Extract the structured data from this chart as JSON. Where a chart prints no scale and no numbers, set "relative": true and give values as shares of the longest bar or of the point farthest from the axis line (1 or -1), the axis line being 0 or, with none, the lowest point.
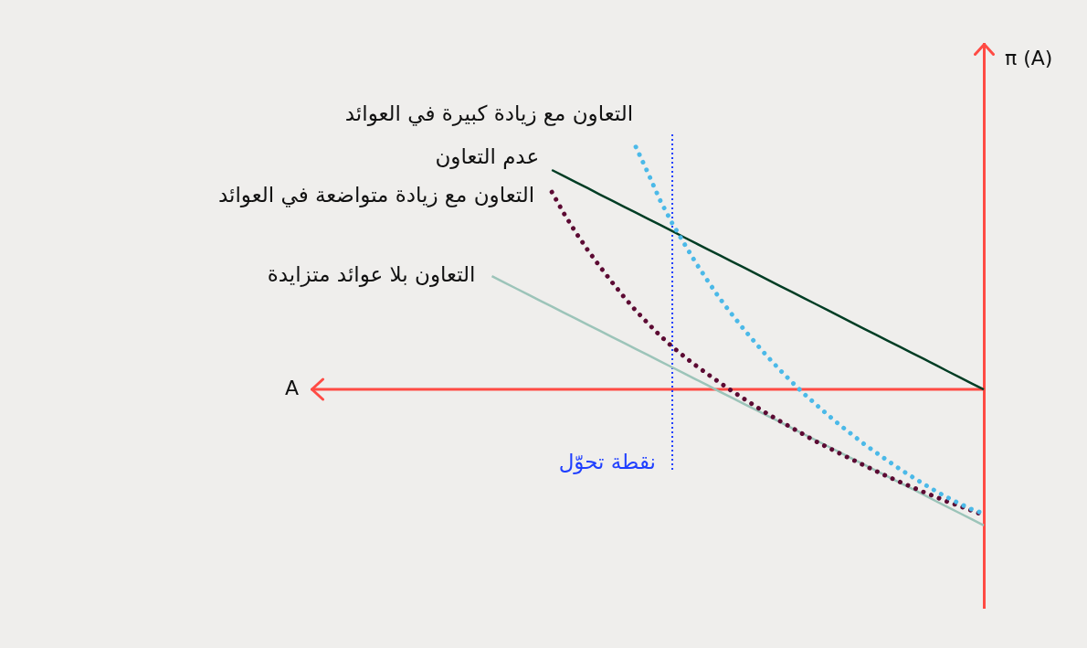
{
  "chart_data": {
    "type": "line",
    "relative": true,
    "xlabel": "A",
    "ylabel": "π (A)",
    "annotations": [
      "نقطة تحوّل"
    ],
    "ref_lines": [
      {
        "axis": "y",
        "value": 0,
        "color": "#ff4b44"
      }
    ],
    "categories": [
      null,
      null,
      null,
      null,
      null,
      null,
      null,
      null,
      null,
      null,
      null,
      null,
      null,
      null,
      null,
      null,
      null,
      null,
      null,
      null,
      null,
      null,
      null,
      null,
      null,
      null,
      null,
      null,
      null,
      null,
      null,
      null,
      null,
      null,
      null,
      null,
      null,
      null,
      null,
      null,
      null,
      null,
      null,
      null,
      null,
      null,
      null,
      null,
      null,
      null,
      null,
      null,
      null,
      null,
      null,
      null,
      null
    ],
    "series": [
      {
        "name": "التعاون مع زيادة كبيرة في العوائد",
        "color": "#4bb9e8",
        "line_style": "dotted",
        "values": [
          null,
          null,
          null,
          null,
          null,
          null,
          null,
          null,
          null,
          null,
          null,
          null,
          null,
          null,
          null,
          null,
          null,
          null,
          null,
          null,
          null,
          null,
          null,
          null,
          null,
          null,
          null,
          1.0,
          0.894,
          0.782,
          0.688,
          0.604,
          0.522,
          0.447,
          0.375,
          0.31,
          0.248,
          0.19,
          0.134,
          0.081,
          0.031,
          -0.017,
          -0.061,
          -0.105,
          -0.146,
          -0.185,
          -0.224,
          -0.259,
          -0.294,
          -0.328,
          -0.359,
          -0.39,
          -0.419,
          -0.446,
          -0.471,
          -0.494,
          -0.512
        ]
      },
      {
        "name": "عدم التعاون",
        "color": "#003d24",
        "line_style": "solid",
        "values": [
          null,
          null,
          null,
          null,
          null,
          null,
          null,
          null,
          null,
          null,
          null,
          null,
          null,
          null,
          null,
          null,
          null,
          null,
          null,
          null,
          0.905,
          0.88,
          0.855,
          0.83,
          0.804,
          0.779,
          0.754,
          0.729,
          0.704,
          0.679,
          0.654,
          0.628,
          0.603,
          0.578,
          0.553,
          0.528,
          0.503,
          0.478,
          0.452,
          0.427,
          0.402,
          0.377,
          0.352,
          0.327,
          0.302,
          0.276,
          0.251,
          0.226,
          0.201,
          0.176,
          0.151,
          0.126,
          0.101,
          0.075,
          0.05,
          0.025,
          0.0
        ]
      },
      {
        "name": "التعاون مع زيادة متواضعة في العوائد",
        "color": "#5c0a33",
        "line_style": "dotted",
        "values": [
          null,
          null,
          null,
          null,
          null,
          null,
          null,
          null,
          null,
          null,
          null,
          null,
          null,
          null,
          null,
          null,
          null,
          null,
          null,
          null,
          0.814,
          0.726,
          0.647,
          0.574,
          0.507,
          0.443,
          0.382,
          0.325,
          0.273,
          0.223,
          0.178,
          0.137,
          0.099,
          0.063,
          0.028,
          -0.006,
          -0.038,
          -0.07,
          -0.101,
          -0.13,
          -0.158,
          -0.186,
          -0.214,
          -0.239,
          -0.264,
          -0.288,
          -0.312,
          -0.336,
          -0.359,
          -0.381,
          -0.402,
          -0.423,
          -0.443,
          -0.463,
          -0.481,
          -0.499,
          -0.518
        ]
      },
      {
        "name": "التعاون بلا عوائد متزايدة",
        "color": "#9cc4b9",
        "line_style": "solid",
        "values": [
          null,
          null,
          null,
          null,
          null,
          null,
          null,
          null,
          null,
          null,
          null,
          null,
          null,
          null,
          null,
          0.467,
          0.442,
          0.417,
          0.392,
          0.367,
          0.342,
          0.317,
          0.292,
          0.267,
          0.242,
          0.217,
          0.192,
          0.167,
          0.142,
          0.117,
          0.092,
          0.067,
          0.042,
          0.017,
          -0.009,
          -0.034,
          -0.059,
          -0.084,
          -0.109,
          -0.134,
          -0.159,
          -0.184,
          -0.209,
          -0.234,
          -0.259,
          -0.284,
          -0.309,
          -0.334,
          -0.359,
          -0.384,
          -0.409,
          -0.434,
          -0.46,
          -0.485,
          -0.51,
          -0.535,
          -0.56
        ]
      }
    ]
  }
}
